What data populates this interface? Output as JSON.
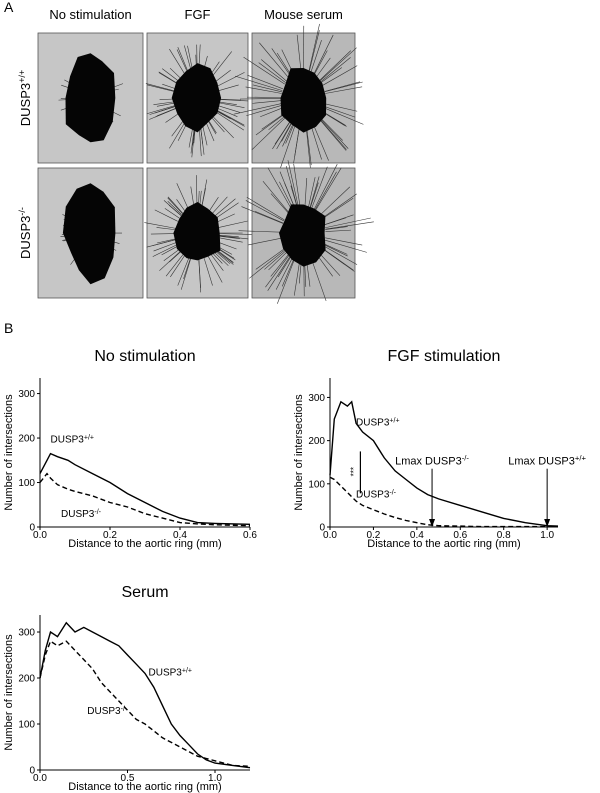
{
  "panel_a": {
    "label": "A",
    "columns": [
      "No stimulation",
      "FGF",
      "Mouse serum"
    ],
    "rows": [
      {
        "text": "DUSP3",
        "sup": "+/+"
      },
      {
        "text": "DUSP3",
        "sup": "-/-"
      }
    ]
  },
  "panel_b": {
    "label": "B"
  },
  "chart_data": [
    {
      "type": "line",
      "title": "No stimulation",
      "xlabel": "Distance to the aortic ring (mm)",
      "ylabel": "Number of intersections",
      "xlim": [
        0,
        0.6
      ],
      "ylim": [
        0,
        335
      ],
      "xticks": [
        {
          "value": 0,
          "label": "0.0"
        },
        0.2,
        0.4,
        0.6
      ],
      "yticks": [
        0,
        100,
        200,
        300
      ],
      "x": [
        0,
        0.02,
        0.03,
        0.05,
        0.08,
        0.1,
        0.15,
        0.2,
        0.25,
        0.3,
        0.35,
        0.4,
        0.45,
        0.5,
        0.6
      ],
      "series": [
        {
          "name": "DUSP3",
          "sup": "+/+",
          "color": "#000000",
          "dashed": false,
          "values": [
            120,
            150,
            165,
            158,
            150,
            140,
            120,
            100,
            75,
            55,
            35,
            20,
            10,
            8,
            6
          ]
        },
        {
          "name": "DUSP3",
          "sup": "-/-",
          "color": "#000000",
          "dashed": true,
          "values": [
            100,
            120,
            110,
            95,
            85,
            80,
            70,
            55,
            45,
            30,
            20,
            10,
            7,
            5,
            3
          ]
        }
      ]
    },
    {
      "type": "line",
      "title": "FGF stimulation",
      "xlabel": "Distance to the aortic ring (mm)",
      "ylabel": "Number of intersections",
      "xlim": [
        0,
        1.05
      ],
      "ylim": [
        0,
        345
      ],
      "xticks": [
        {
          "value": 0,
          "label": "0.0"
        },
        0.2,
        0.4,
        0.6,
        0.8,
        {
          "value": 1,
          "label": "1.0"
        }
      ],
      "yticks": [
        0,
        100,
        200,
        300
      ],
      "x": [
        0,
        0.02,
        0.05,
        0.08,
        0.1,
        0.12,
        0.15,
        0.2,
        0.25,
        0.3,
        0.35,
        0.4,
        0.45,
        0.5,
        0.6,
        0.7,
        0.8,
        0.9,
        1.0,
        1.05
      ],
      "series": [
        {
          "name": "DUSP3",
          "sup": "+/+",
          "color": "#000000",
          "dashed": false,
          "values": [
            120,
            250,
            290,
            280,
            290,
            240,
            220,
            200,
            160,
            130,
            110,
            90,
            75,
            65,
            50,
            35,
            20,
            10,
            3,
            2
          ]
        },
        {
          "name": "DUSP3",
          "sup": "-/-",
          "color": "#000000",
          "dashed": true,
          "values": [
            115,
            110,
            95,
            80,
            70,
            60,
            50,
            40,
            30,
            22,
            15,
            10,
            5,
            3,
            2,
            1,
            1,
            1,
            1,
            1
          ]
        }
      ],
      "significance": "***",
      "lmax": [
        {
          "text": "Lmax DUSP3",
          "sup": "-/-",
          "x": 0.47
        },
        {
          "text": "Lmax DUSP3",
          "sup": "+/+",
          "x": 1.0
        }
      ]
    },
    {
      "type": "line",
      "title": "Serum",
      "xlabel": "Distance to the aortic ring (mm)",
      "ylabel": "Number of intersections",
      "xlim": [
        0,
        1.2
      ],
      "ylim": [
        0,
        337
      ],
      "xticks": [
        {
          "value": 0,
          "label": "0.0"
        },
        0.5,
        {
          "value": 1,
          "label": "1.0"
        }
      ],
      "yticks": [
        0,
        100,
        200,
        300
      ],
      "x": [
        0,
        0.03,
        0.06,
        0.1,
        0.15,
        0.2,
        0.25,
        0.3,
        0.35,
        0.4,
        0.45,
        0.5,
        0.55,
        0.6,
        0.65,
        0.7,
        0.75,
        0.8,
        0.85,
        0.9,
        0.95,
        1.0,
        1.1,
        1.2
      ],
      "series": [
        {
          "name": "DUSP3",
          "sup": "+/+",
          "color": "#000000",
          "dashed": false,
          "values": [
            200,
            260,
            300,
            290,
            320,
            300,
            310,
            300,
            290,
            280,
            270,
            250,
            230,
            210,
            180,
            140,
            100,
            75,
            55,
            35,
            22,
            15,
            10,
            5
          ]
        },
        {
          "name": "DUSP3",
          "sup": "-/-",
          "color": "#000000",
          "dashed": true,
          "values": [
            200,
            250,
            280,
            270,
            280,
            260,
            240,
            220,
            190,
            170,
            150,
            130,
            110,
            100,
            85,
            70,
            60,
            50,
            40,
            30,
            25,
            20,
            10,
            8
          ]
        }
      ]
    }
  ]
}
